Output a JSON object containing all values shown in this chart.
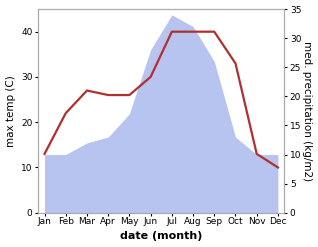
{
  "months": [
    "Jan",
    "Feb",
    "Mar",
    "Apr",
    "May",
    "Jun",
    "Jul",
    "Aug",
    "Sep",
    "Oct",
    "Nov",
    "Dec"
  ],
  "month_indices": [
    0,
    1,
    2,
    3,
    4,
    5,
    6,
    7,
    8,
    9,
    10,
    11
  ],
  "temperature": [
    13,
    22,
    27,
    26,
    26,
    30,
    40,
    40,
    40,
    33,
    13,
    10
  ],
  "precipitation": [
    10,
    10,
    12,
    13,
    17,
    28,
    34,
    32,
    26,
    13,
    10,
    10
  ],
  "temp_color": "#b03030",
  "precip_color": "#b8c4f0",
  "left_ylim": [
    0,
    45
  ],
  "right_ylim": [
    0,
    35
  ],
  "left_yticks": [
    0,
    10,
    20,
    30,
    40
  ],
  "right_yticks": [
    0,
    5,
    10,
    15,
    20,
    25,
    30,
    35
  ],
  "ylabel_left": "max temp (C)",
  "ylabel_right": "med. precipitation (kg/m2)",
  "xlabel": "date (month)",
  "figsize": [
    3.18,
    2.47
  ],
  "dpi": 100,
  "temp_linewidth": 1.6,
  "xlabel_fontsize": 8,
  "ylabel_fontsize": 7.5,
  "tick_fontsize": 6.5
}
